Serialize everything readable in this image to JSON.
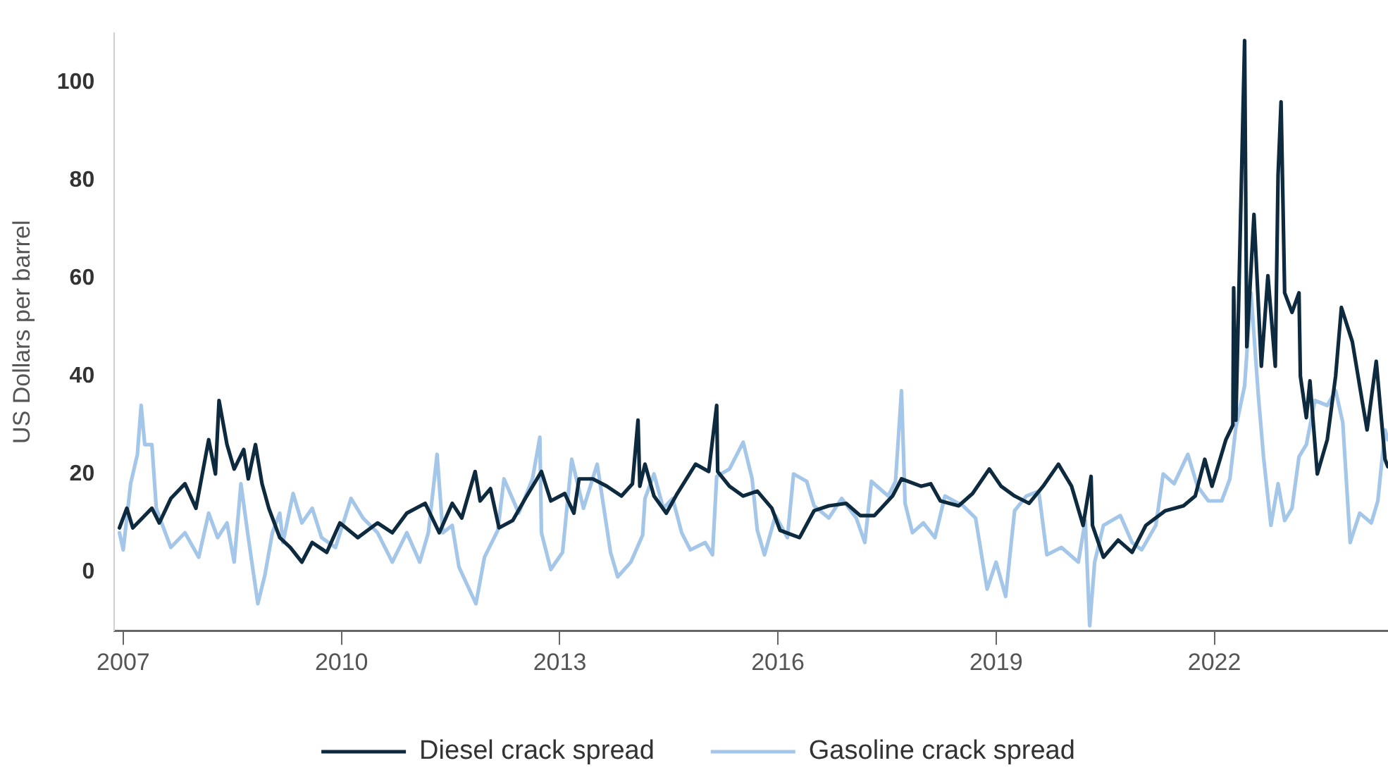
{
  "chart_data": {
    "type": "line",
    "ylabel": "US Dollars per barrel",
    "xlim": [
      "2006-11-17",
      "2024-05-22"
    ],
    "xticks": [
      "2007",
      "2010",
      "2013",
      "2016",
      "2019",
      "2022"
    ],
    "ylim": [
      -12,
      110
    ],
    "yticks": [
      0,
      20,
      40,
      60,
      80,
      100
    ],
    "legend": "bottom",
    "marker": "none",
    "series": [
      {
        "name": "Diesel crack spread",
        "color": "#0d2a3f",
        "x": [
          "2006-12-13",
          "2007-01-19",
          "2007-02-18",
          "2007-05-25",
          "2007-07-01",
          "2007-08-28",
          "2007-11-07",
          "2008-01-01",
          "2008-03-05",
          "2008-04-08",
          "2008-04-26",
          "2008-06-05",
          "2008-07-11",
          "2008-08-28",
          "2008-09-20",
          "2008-10-26",
          "2008-11-28",
          "2009-01-01",
          "2009-02-25",
          "2009-04-19",
          "2009-06-16",
          "2009-08-07",
          "2009-10-19",
          "2009-12-24",
          "2010-03-24",
          "2010-07-01",
          "2010-09-13",
          "2010-11-25",
          "2011-02-25",
          "2011-05-07",
          "2011-07-11",
          "2011-08-28",
          "2011-11-03",
          "2011-11-28",
          "2012-01-19",
          "2012-03-02",
          "2012-05-10",
          "2012-07-19",
          "2012-10-01",
          "2012-11-17",
          "2013-01-26",
          "2013-03-13",
          "2013-04-08",
          "2013-06-16",
          "2013-08-25",
          "2013-11-07",
          "2014-01-01",
          "2014-01-29",
          "2014-02-07",
          "2014-03-05",
          "2014-04-19",
          "2014-06-20",
          "2014-08-14",
          "2014-11-14",
          "2015-01-19",
          "2015-02-28",
          "2015-03-05",
          "2015-05-03",
          "2015-07-11",
          "2015-09-20",
          "2015-12-02",
          "2016-01-12",
          "2016-04-19",
          "2016-07-01",
          "2016-09-13",
          "2016-12-09",
          "2017-02-18",
          "2017-04-30",
          "2017-07-30",
          "2017-09-13",
          "2017-12-20",
          "2018-02-07",
          "2018-03-27",
          "2018-06-27",
          "2018-09-05",
          "2018-11-28",
          "2019-01-26",
          "2019-04-04",
          "2019-06-16",
          "2019-08-25",
          "2019-11-10",
          "2020-01-15",
          "2020-03-13",
          "2020-04-22",
          "2020-04-29",
          "2020-06-23",
          "2020-09-05",
          "2020-11-14",
          "2021-01-22",
          "2021-04-30",
          "2021-07-30",
          "2021-09-27",
          "2021-11-14",
          "2021-12-20",
          "2022-02-28",
          "2022-04-04",
          "2022-04-08",
          "2022-04-19",
          "2022-05-03",
          "2022-06-02",
          "2022-06-13",
          "2022-07-19",
          "2022-08-25",
          "2022-09-27",
          "2022-11-03",
          "2022-11-17",
          "2022-12-02",
          "2022-12-20",
          "2023-01-26",
          "2023-03-02",
          "2023-03-09",
          "2023-04-08",
          "2023-04-26",
          "2023-06-02",
          "2023-07-22",
          "2023-09-02",
          "2023-10-01",
          "2023-11-25",
          "2024-01-15",
          "2024-02-07",
          "2024-03-24",
          "2024-05-07",
          "2024-05-21"
        ],
        "values": [
          9,
          13,
          9,
          13,
          10,
          15,
          18,
          13,
          27,
          20,
          35,
          26,
          21,
          25,
          19,
          26,
          18,
          13,
          7,
          5,
          2,
          6,
          4,
          10,
          7,
          10,
          8,
          12,
          14,
          8,
          14,
          11,
          20.5,
          14.5,
          17,
          9,
          10.5,
          15.5,
          20.5,
          14.5,
          16,
          12,
          19,
          19,
          17.5,
          15.5,
          18,
          31,
          17.5,
          22,
          15.5,
          12,
          16,
          22,
          20.5,
          34,
          20.5,
          17.5,
          15.5,
          16.5,
          13,
          8.5,
          7,
          12.5,
          13.5,
          14,
          11.5,
          11.5,
          15.5,
          19,
          17.5,
          18,
          14.5,
          13.5,
          16,
          21,
          17.5,
          15.5,
          14,
          17.5,
          22,
          17.5,
          9.5,
          19.5,
          9.5,
          3,
          6.5,
          4,
          9.5,
          12.5,
          13.5,
          15.5,
          23,
          17.5,
          27,
          30,
          58,
          31,
          55,
          108.5,
          46,
          73,
          42,
          60.5,
          42,
          81,
          96,
          57,
          53,
          57,
          40,
          31.5,
          39,
          20,
          27,
          40,
          54,
          47,
          34.5,
          29,
          43,
          23,
          21.5
        ]
      },
      {
        "name": "Gasoline crack spread",
        "color": "#a4c6e8",
        "x": [
          "2006-12-13",
          "2007-01-01",
          "2007-02-07",
          "2007-03-13",
          "2007-04-01",
          "2007-04-19",
          "2007-05-25",
          "2007-06-16",
          "2007-07-22",
          "2007-08-28",
          "2007-11-07",
          "2008-01-15",
          "2008-03-05",
          "2008-04-19",
          "2008-06-05",
          "2008-07-11",
          "2008-08-14",
          "2008-09-20",
          "2008-11-07",
          "2008-12-13",
          "2009-01-19",
          "2009-02-25",
          "2009-03-13",
          "2009-05-03",
          "2009-06-16",
          "2009-08-07",
          "2009-09-23",
          "2009-12-02",
          "2010-02-18",
          "2010-04-19",
          "2010-07-01",
          "2010-09-13",
          "2010-11-25",
          "2011-01-29",
          "2011-03-13",
          "2011-04-26",
          "2011-05-25",
          "2011-07-11",
          "2011-08-14",
          "2011-11-07",
          "2011-12-20",
          "2012-02-25",
          "2012-03-27",
          "2012-06-09",
          "2012-08-17",
          "2012-09-23",
          "2012-10-01",
          "2012-11-17",
          "2013-01-15",
          "2013-03-02",
          "2013-04-30",
          "2013-07-08",
          "2013-09-13",
          "2013-10-19",
          "2013-12-24",
          "2014-02-21",
          "2014-03-05",
          "2014-04-19",
          "2014-06-05",
          "2014-07-22",
          "2014-09-05",
          "2014-10-19",
          "2015-01-01",
          "2015-02-07",
          "2015-02-28",
          "2015-05-03",
          "2015-07-11",
          "2015-08-25",
          "2015-09-20",
          "2015-10-26",
          "2015-12-20",
          "2016-02-18",
          "2016-03-20",
          "2016-05-25",
          "2016-07-01",
          "2016-09-13",
          "2016-11-17",
          "2017-01-29",
          "2017-03-13",
          "2017-04-15",
          "2017-07-08",
          "2017-08-14",
          "2017-09-13",
          "2017-10-01",
          "2017-11-07",
          "2018-01-01",
          "2018-02-28",
          "2018-04-19",
          "2018-07-19",
          "2018-09-20",
          "2018-11-17",
          "2019-01-01",
          "2019-02-18",
          "2019-04-04",
          "2019-06-02",
          "2019-08-03",
          "2019-09-13",
          "2019-11-25",
          "2020-02-18",
          "2020-03-24",
          "2020-04-15",
          "2020-05-10",
          "2020-06-23",
          "2020-09-16",
          "2020-11-14",
          "2021-01-01",
          "2021-03-13",
          "2021-04-19",
          "2021-06-13",
          "2021-08-21",
          "2021-10-08",
          "2021-12-02",
          "2022-02-07",
          "2022-03-20",
          "2022-04-19",
          "2022-06-02",
          "2022-07-04",
          "2022-08-10",
          "2022-09-05",
          "2022-10-12",
          "2022-11-17",
          "2022-12-20",
          "2023-01-26",
          "2023-03-02",
          "2023-04-08",
          "2023-05-21",
          "2023-07-22",
          "2023-09-02",
          "2023-10-08",
          "2023-11-14",
          "2024-01-01",
          "2024-02-28",
          "2024-04-01",
          "2024-05-07",
          "2024-05-21"
        ],
        "values": [
          8,
          4.5,
          18,
          24,
          34,
          26,
          26,
          13,
          9,
          5,
          8,
          3,
          12,
          7,
          10,
          2,
          18,
          7,
          -6.5,
          -0.5,
          8,
          12,
          6,
          16,
          10,
          13,
          7,
          5,
          15,
          11,
          8,
          2,
          8,
          2,
          8,
          24,
          8,
          9.5,
          1,
          -6.5,
          3,
          8.5,
          19,
          12,
          19,
          27.5,
          8,
          0.5,
          4,
          23,
          13,
          22,
          4,
          -1,
          2,
          7.5,
          15,
          20,
          13,
          15,
          8,
          4.5,
          6,
          3.5,
          19.5,
          21,
          26.5,
          19,
          8.5,
          3.5,
          11.5,
          7,
          20,
          18.5,
          13.5,
          11,
          15,
          11,
          6,
          18.5,
          15.5,
          18.5,
          37,
          14,
          8,
          10,
          7,
          15.5,
          13.5,
          11,
          -3.5,
          2,
          -5,
          12.5,
          15.5,
          16.5,
          3.5,
          5,
          2,
          10.5,
          -11,
          2,
          9.5,
          11.5,
          6,
          4.5,
          9.5,
          20,
          18,
          24,
          17.5,
          14.5,
          14.5,
          19,
          29.5,
          38,
          57,
          36,
          23.5,
          9.5,
          18,
          10.5,
          13,
          23.5,
          26,
          35,
          34,
          37,
          30.5,
          6,
          12,
          10,
          14.5,
          29,
          27
        ]
      }
    ]
  }
}
